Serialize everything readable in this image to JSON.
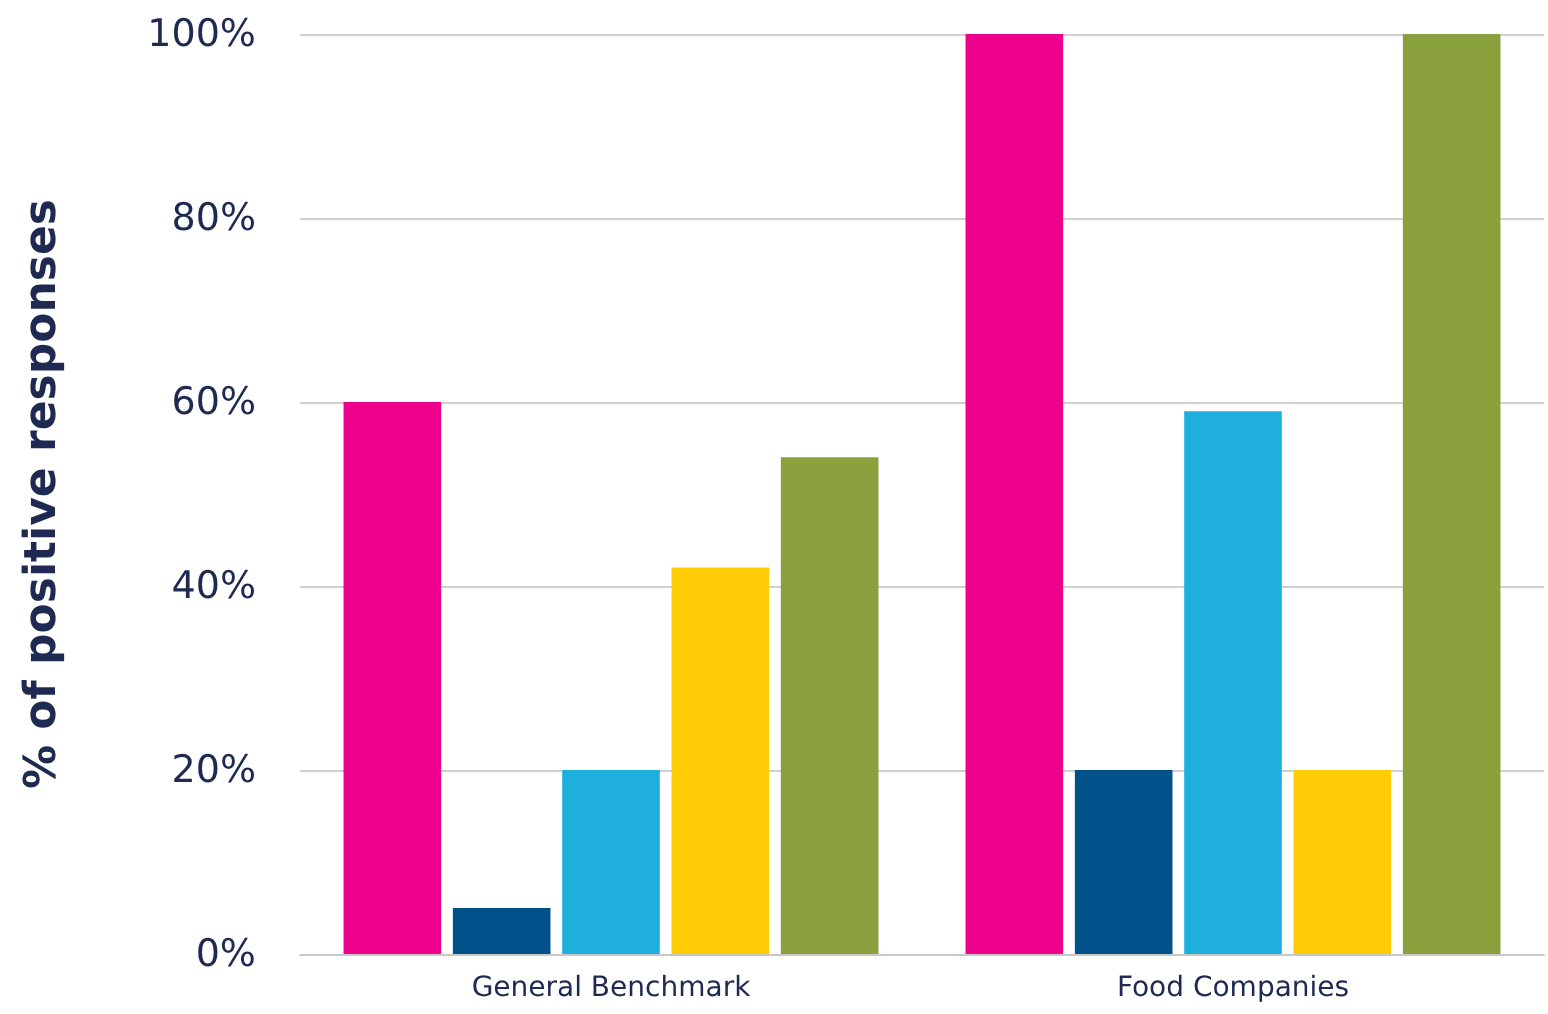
{
  "chart_data": {
    "type": "bar",
    "ylabel": "% of positive responses",
    "categories": [
      "General Benchmark",
      "Food Companies"
    ],
    "series": [
      {
        "color": "#ec008c",
        "values": [
          60,
          100
        ]
      },
      {
        "color": "#00508a",
        "values": [
          5,
          20
        ]
      },
      {
        "color": "#1eafdc",
        "values": [
          20,
          59
        ]
      },
      {
        "color": "#fecb05",
        "values": [
          42,
          20
        ]
      },
      {
        "color": "#8aa03c",
        "values": [
          54,
          100
        ]
      }
    ],
    "ylim": [
      0,
      100
    ],
    "yticks": [
      {
        "value": 0,
        "label": "0%"
      },
      {
        "value": 20,
        "label": "20%"
      },
      {
        "value": 40,
        "label": "40%"
      },
      {
        "value": 60,
        "label": "60%"
      },
      {
        "value": 80,
        "label": "80%"
      },
      {
        "value": 100,
        "label": "100%"
      }
    ],
    "grid": "y"
  }
}
